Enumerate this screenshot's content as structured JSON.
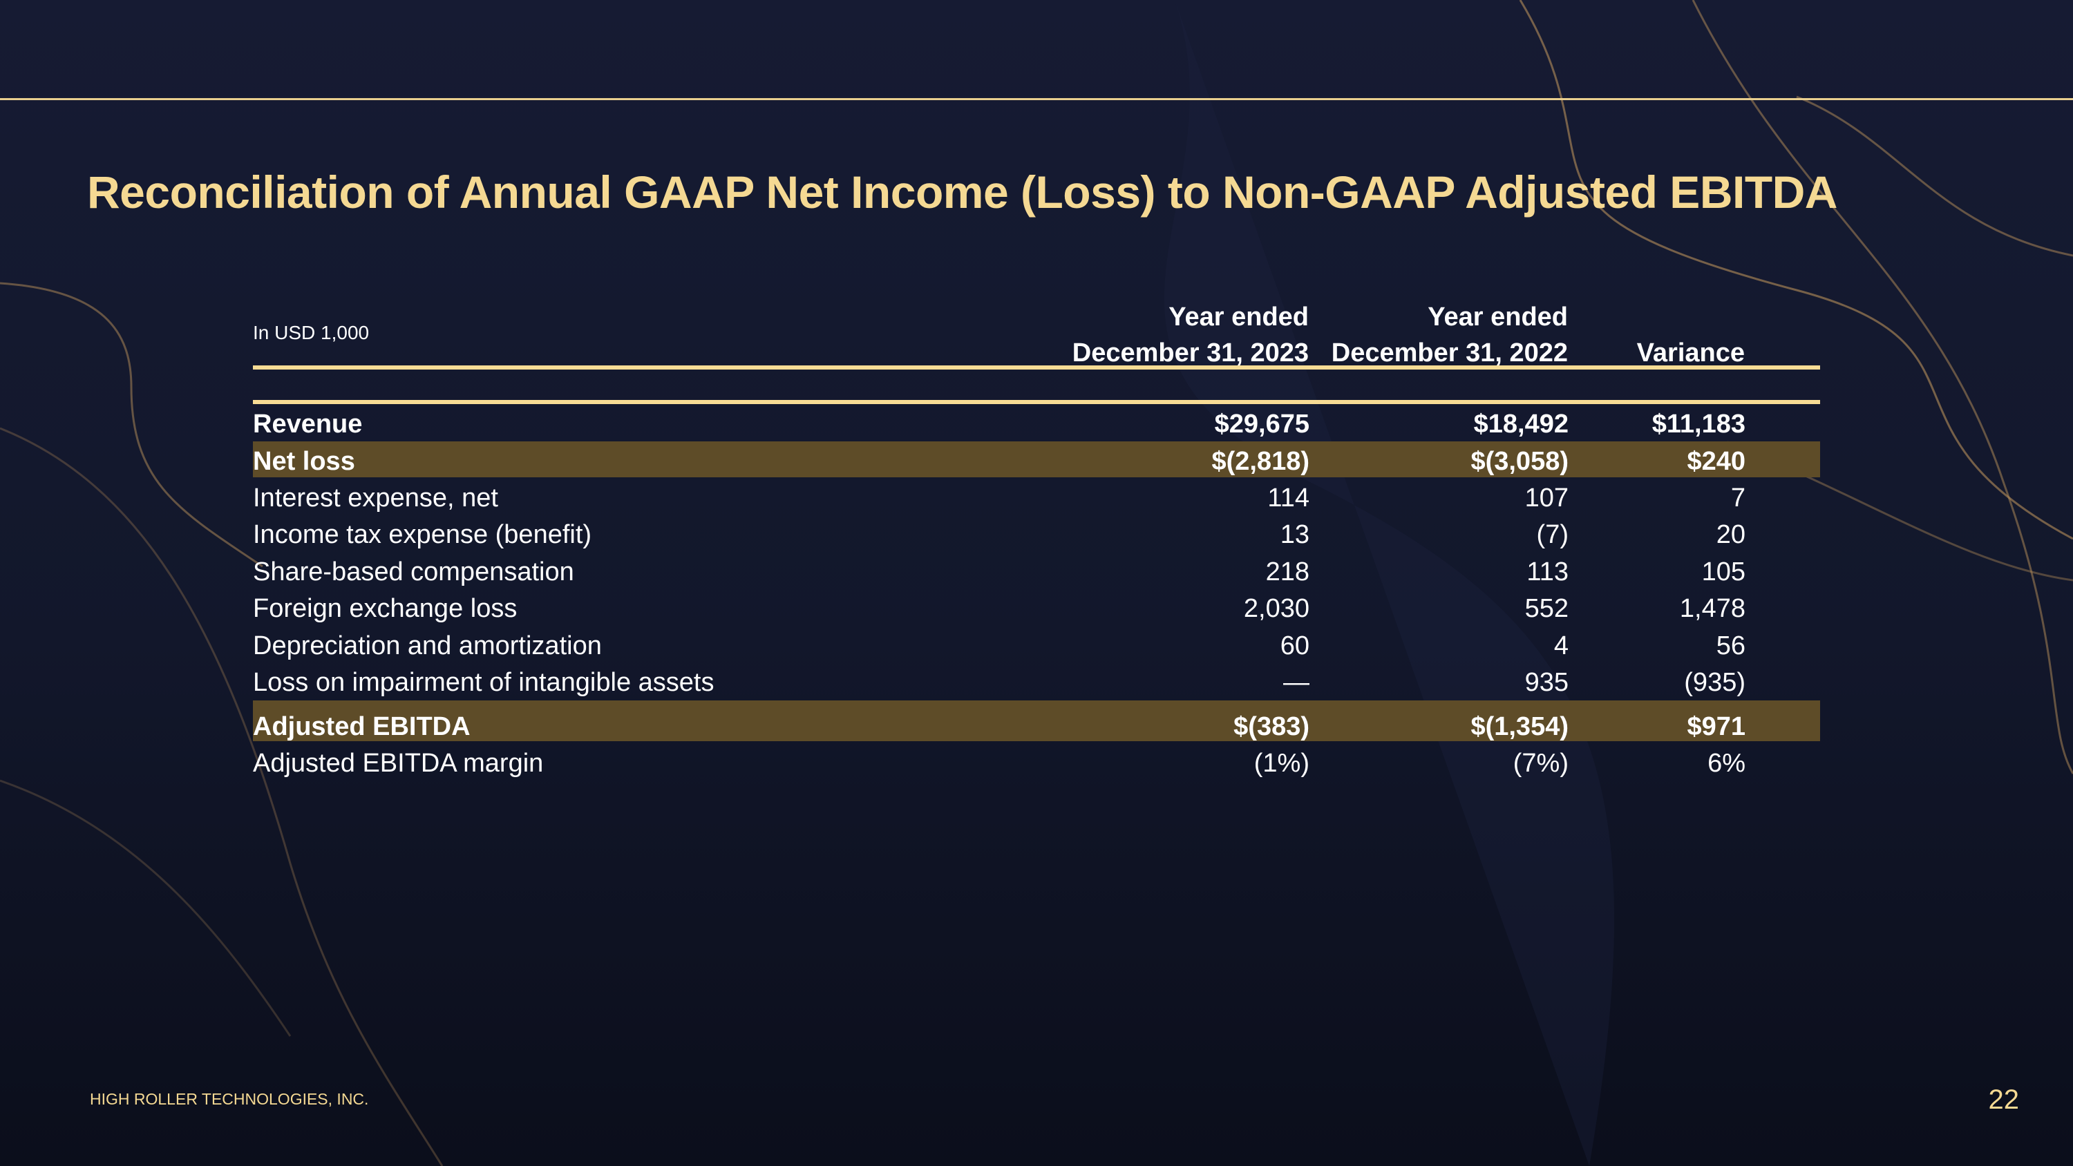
{
  "title": "Reconciliation of Annual GAAP Net Income (Loss) to Non-GAAP Adjusted EBITDA",
  "unit_label": "In USD 1,000",
  "columns": [
    {
      "line1": "Year ended",
      "line2": "December 31, 2023"
    },
    {
      "line1": "Year ended",
      "line2": "December 31, 2022"
    },
    {
      "line1": "",
      "line2": "Variance"
    }
  ],
  "rows": [
    {
      "label": "Revenue",
      "values": [
        "$29,675",
        "$18,492",
        "$11,183"
      ],
      "bold": true,
      "highlight": false
    },
    {
      "label": "Net loss",
      "values": [
        "$(2,818)",
        "$(3,058)",
        "$240"
      ],
      "bold": true,
      "highlight": true
    },
    {
      "label": "Interest expense, net",
      "values": [
        "114",
        "107",
        "7"
      ],
      "bold": false,
      "highlight": false
    },
    {
      "label": "Income tax expense (benefit)",
      "values": [
        "13",
        "(7)",
        "20"
      ],
      "bold": false,
      "highlight": false
    },
    {
      "label": "Share-based compensation",
      "values": [
        "218",
        "113",
        "105"
      ],
      "bold": false,
      "highlight": false
    },
    {
      "label": "Foreign exchange loss",
      "values": [
        "2,030",
        "552",
        "1,478"
      ],
      "bold": false,
      "highlight": false
    },
    {
      "label": "Depreciation and amortization",
      "values": [
        "60",
        "4",
        "56"
      ],
      "bold": false,
      "highlight": false
    },
    {
      "label": "Loss on impairment of intangible assets",
      "values": [
        "—",
        "935",
        "(935)"
      ],
      "bold": false,
      "highlight": false
    },
    {
      "label": "Adjusted EBITDA",
      "values": [
        "$(383)",
        "$(1,354)",
        "$971"
      ],
      "bold": true,
      "highlight": true
    },
    {
      "label": "Adjusted EBITDA margin",
      "values": [
        "(1%)",
        "(7%)",
        "6%"
      ],
      "bold": false,
      "highlight": false
    }
  ],
  "footer": {
    "company": "HIGH ROLLER TECHNOLOGIES, INC.",
    "page_number": "22"
  },
  "colors": {
    "accent": "#f5d993",
    "highlight": "#5e4c28",
    "background": "#141a2e"
  }
}
